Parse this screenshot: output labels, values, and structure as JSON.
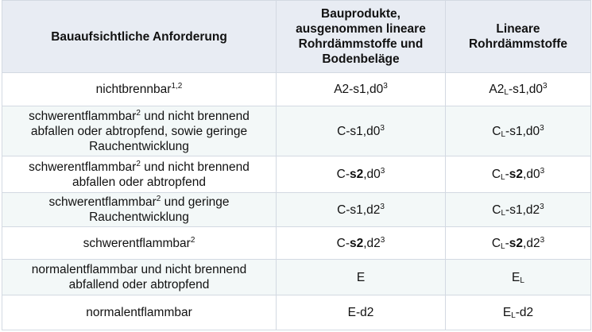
{
  "header": {
    "col1": "Bauaufsichtliche Anforderung",
    "col2": "Bauprodukte, ausgenommen lineare Rohrdämmstoffe und Bodenbeläge",
    "col3": "Lineare Rohrdämmstoffe"
  },
  "rows": [
    {
      "requirement": [
        "nichtbrennbar",
        "1,2"
      ],
      "bauprodukte": [
        "A2-s1,d0",
        "3"
      ],
      "rohr": [
        "A2",
        "L",
        "-s1,d0",
        "3"
      ]
    },
    {
      "requirement": [
        "schwerentflammbar",
        "2",
        " und nicht brennend abfallen oder abtropfend, sowie geringe Rauchentwicklung"
      ],
      "bauprodukte": [
        "C-s1,d0",
        "3"
      ],
      "rohr": [
        "C",
        "L",
        "-s1,d0",
        "3"
      ]
    },
    {
      "requirement": [
        "schwerentflammbar",
        "2",
        " und nicht brennend abfallen oder abtropfend"
      ],
      "bauprodukte": [
        "C-",
        "s2",
        ",d0",
        "3"
      ],
      "rohr": [
        "C",
        "L",
        "-",
        "s2",
        ",d0",
        "3"
      ]
    },
    {
      "requirement": [
        "schwerentflammbar",
        "2",
        " und geringe Rauchentwicklung"
      ],
      "bauprodukte": [
        "C-s1,d2",
        "3"
      ],
      "rohr": [
        "C",
        "L",
        "-s1,d2",
        "3"
      ]
    },
    {
      "requirement": [
        "schwerentflammbar",
        "2"
      ],
      "bauprodukte": [
        "C-",
        "s2",
        ",d2",
        "3"
      ],
      "rohr": [
        "C",
        "L",
        "-",
        "s2",
        ",d2",
        "3"
      ]
    },
    {
      "requirement": [
        "normalentflammbar und nicht brennend abfallend oder abtropfend"
      ],
      "bauprodukte": [
        "E"
      ],
      "rohr": [
        "E",
        "L"
      ]
    },
    {
      "requirement": [
        "normalentflammbar"
      ],
      "bauprodukte": [
        "E-d2"
      ],
      "rohr": [
        "E",
        "L",
        "-d2"
      ]
    }
  ]
}
